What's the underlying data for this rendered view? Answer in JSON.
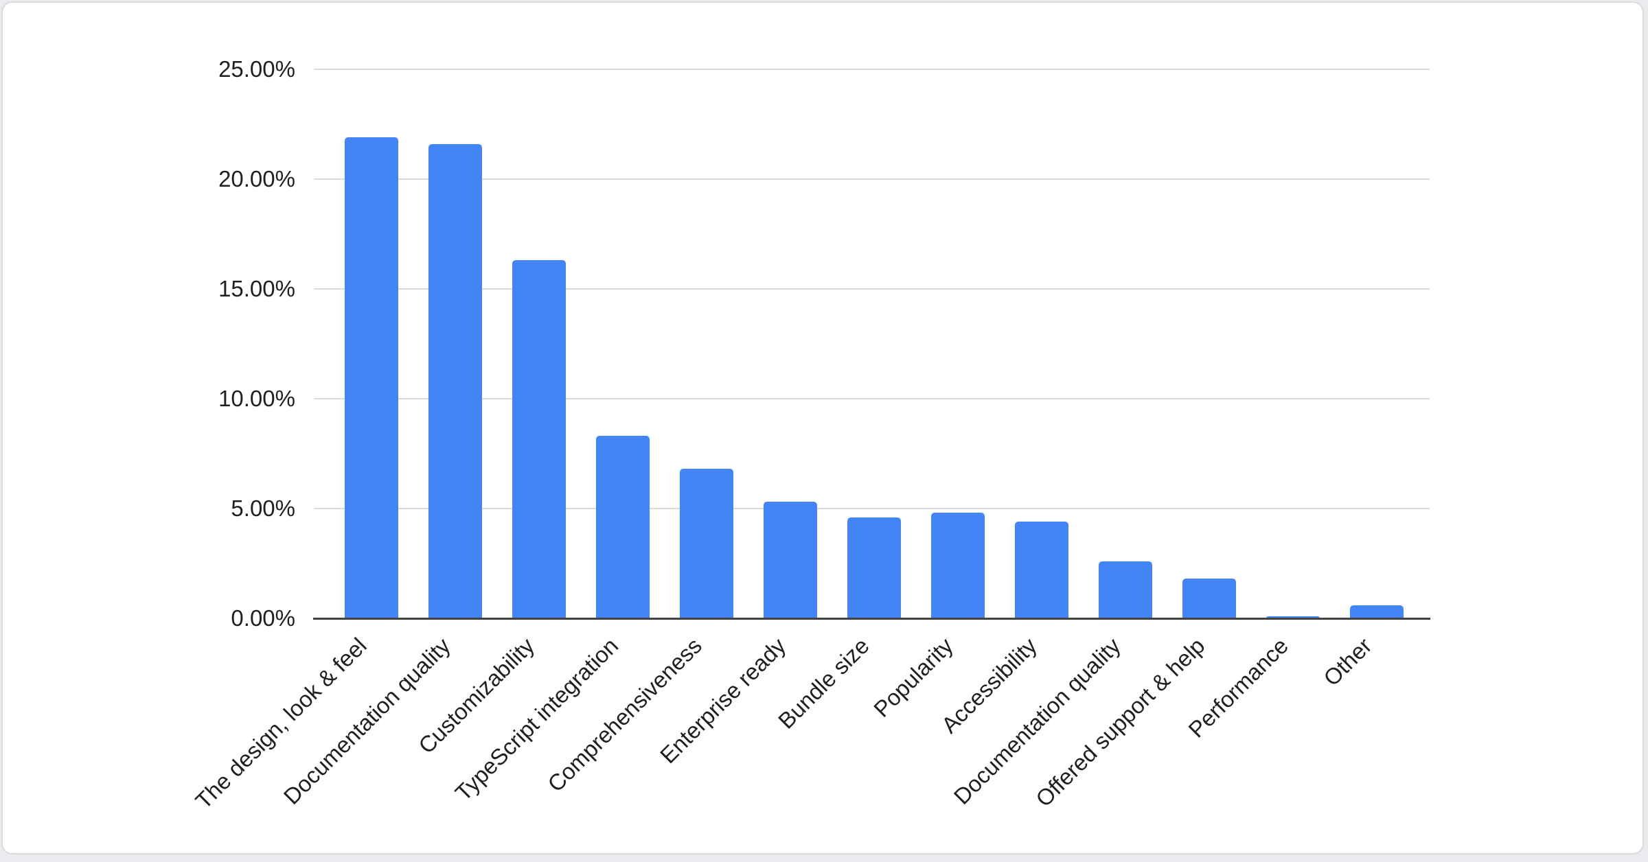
{
  "chart_data": {
    "type": "bar",
    "title": "",
    "categories": [
      "The design, look & feel",
      "Documentation quality",
      "Customizability",
      "TypeScript integration",
      "Comprehensiveness",
      "Enterprise ready",
      "Bundle size",
      "Popularity",
      "Accessibility",
      "Documentation quality",
      "Offered support & help",
      "Performance",
      "Other"
    ],
    "values": [
      21.9,
      21.6,
      16.3,
      8.3,
      6.8,
      5.3,
      4.6,
      4.8,
      4.4,
      2.6,
      1.8,
      0.1,
      0.6
    ],
    "value_unit": "%",
    "xlabel": "",
    "ylabel": "",
    "ylim": [
      0,
      25
    ],
    "y_ticks": [
      {
        "label": "0.00%",
        "value": 0
      },
      {
        "label": "5.00%",
        "value": 5
      },
      {
        "label": "10.00%",
        "value": 10
      },
      {
        "label": "15.00%",
        "value": 15
      },
      {
        "label": "20.00%",
        "value": 20
      },
      {
        "label": "25.00%",
        "value": 25
      }
    ],
    "grid": true,
    "legend": "none",
    "x_label_rotation_deg": -45,
    "colors": {
      "bar": "#4285f4",
      "gridline": "#d9d9d9",
      "axis_line": "#424242",
      "label_text": "#1f1f1f",
      "card_background": "#ffffff",
      "card_border": "#dadce0",
      "page_background": "#e9ebee"
    }
  }
}
